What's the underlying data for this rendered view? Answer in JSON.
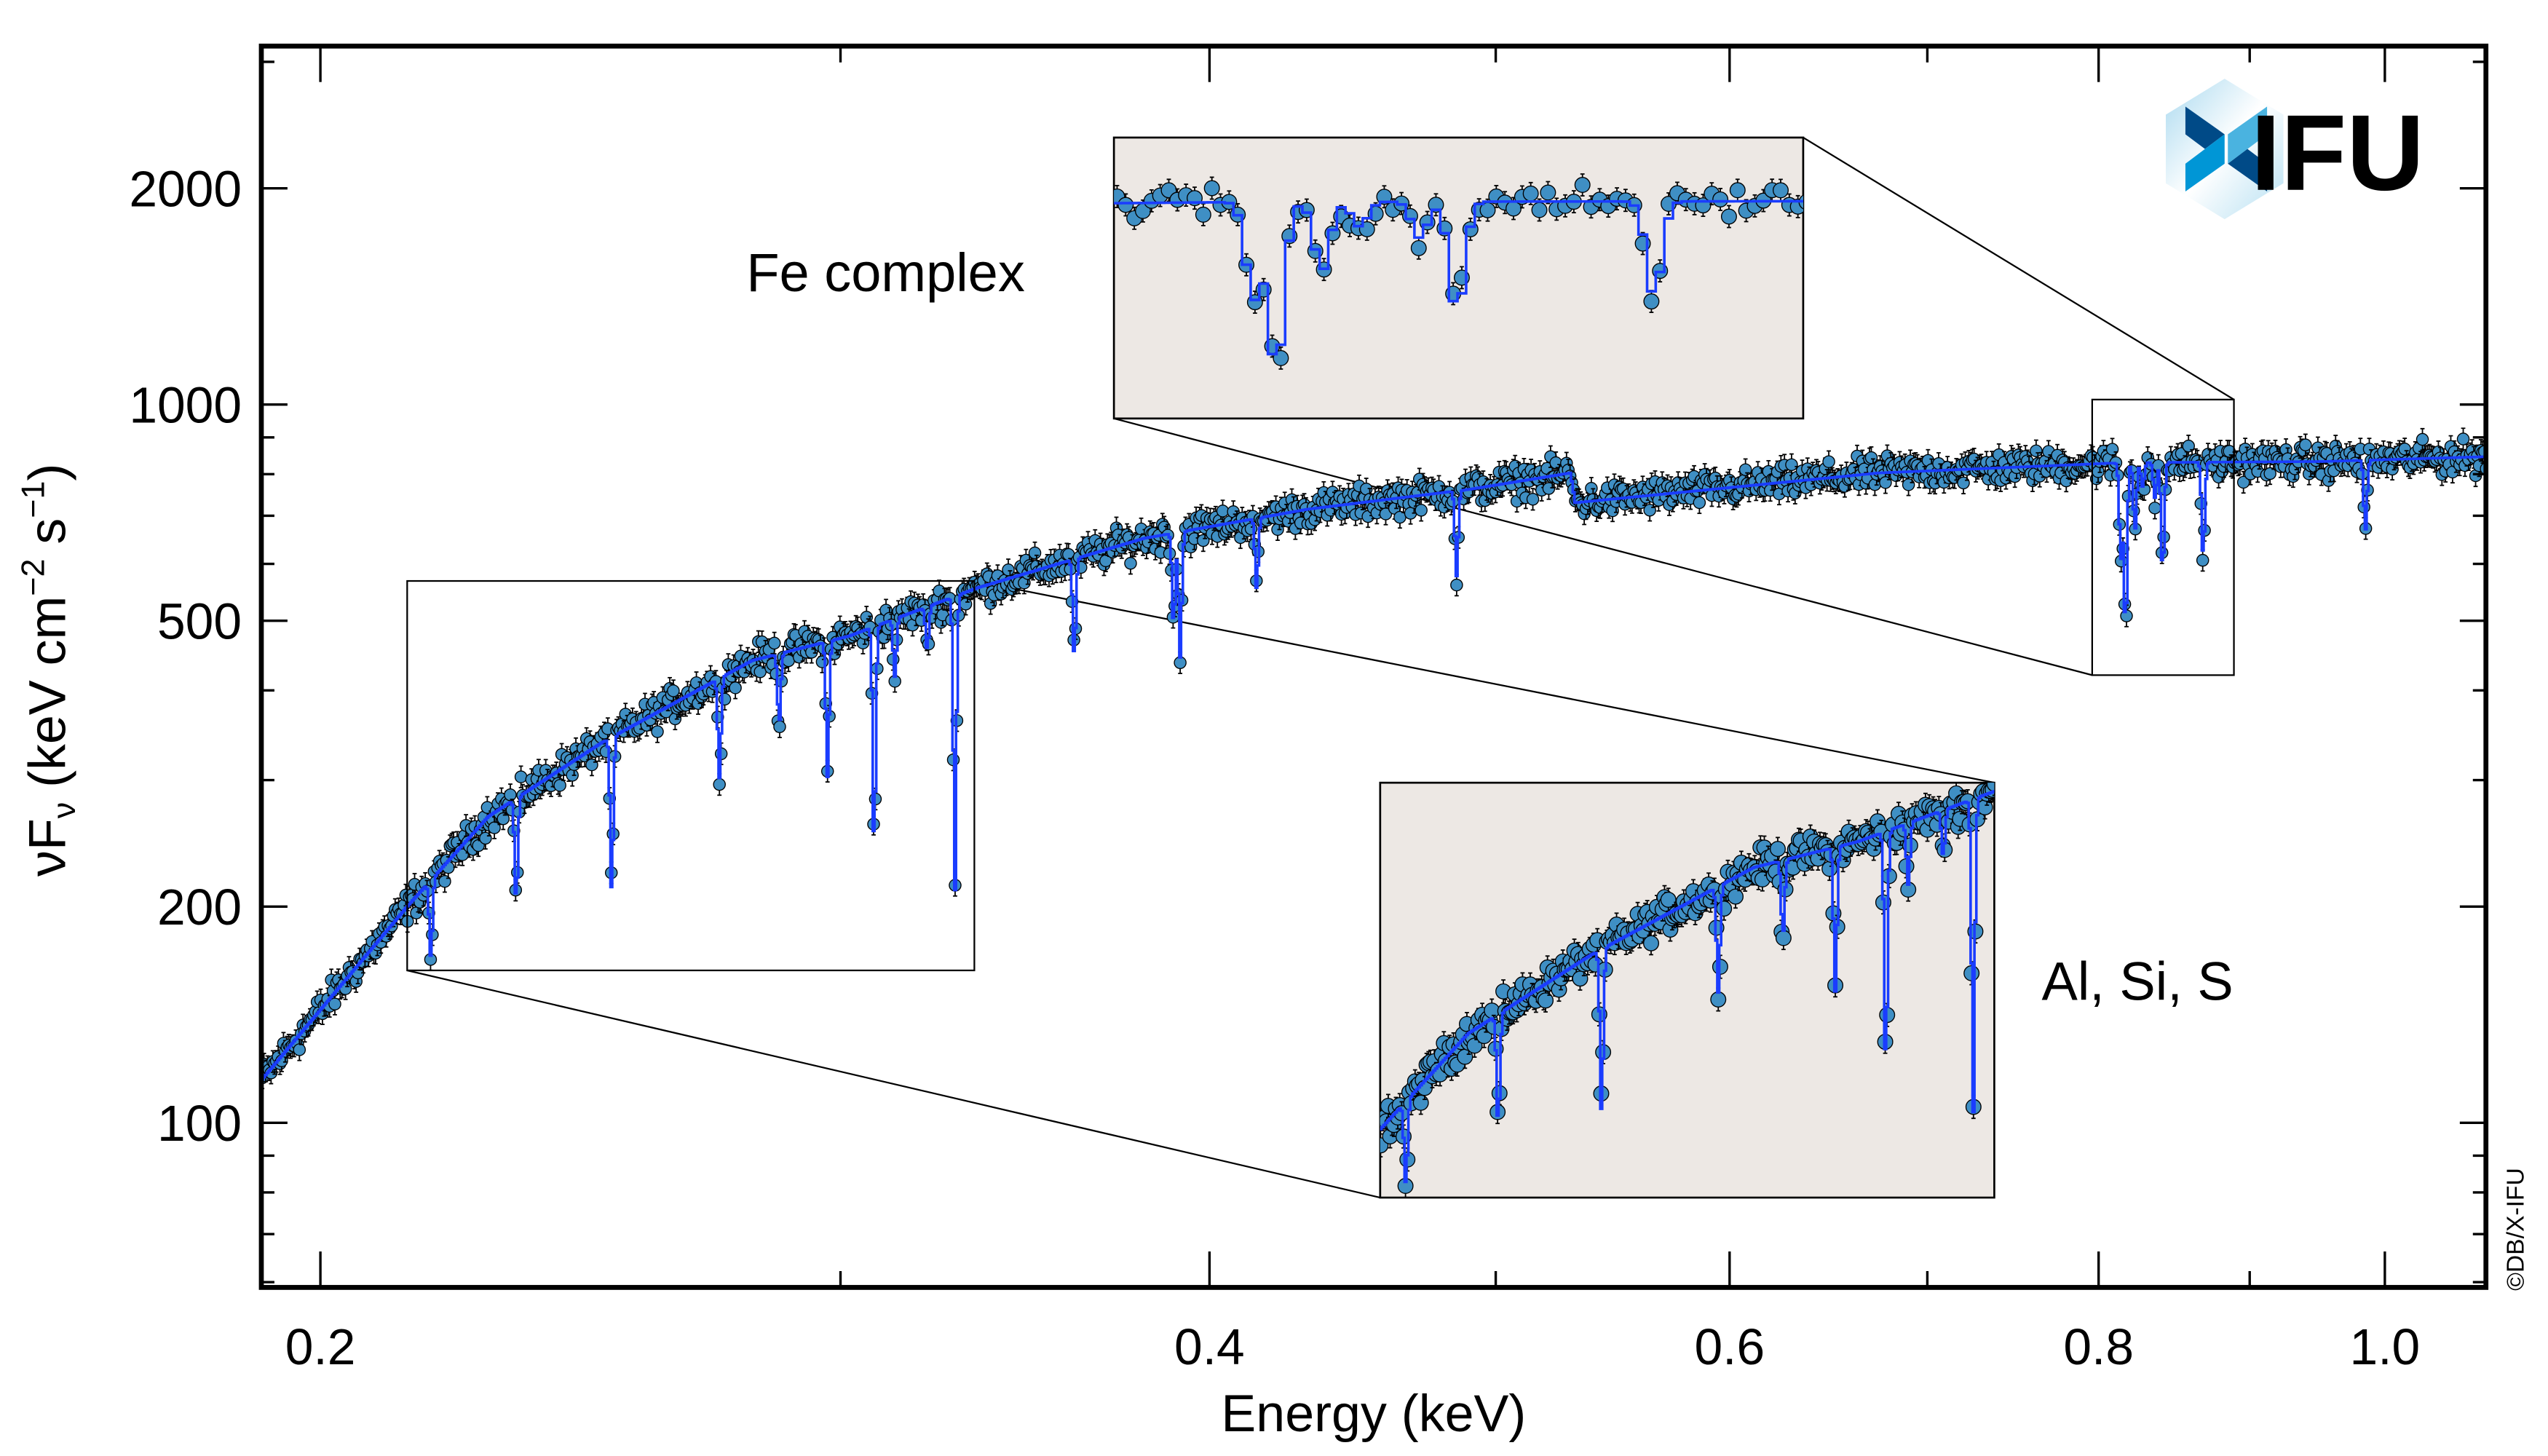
{
  "chart_data": {
    "type": "scatter",
    "xlabel": "Energy (keV)",
    "ylabel": {
      "nu": "ν",
      "F": "F",
      "sub": "ν",
      "open": " (keV cm",
      "sup1": "−2",
      "mid": " s",
      "sup2": "−1",
      "close": ")"
    },
    "xscale": "log",
    "yscale": "log",
    "xlim": [
      0.191,
      1.082
    ],
    "ylim": [
      59,
      3155
    ],
    "grid": false,
    "xticks": {
      "major": [
        0.2,
        0.4,
        0.6,
        0.8,
        1.0
      ],
      "labels": [
        "0.2",
        "0.4",
        "0.6",
        "0.8",
        "1.0"
      ],
      "minor": [
        0.3,
        0.5,
        0.7,
        0.9
      ]
    },
    "yticks": {
      "major": [
        100,
        200,
        500,
        1000,
        2000
      ],
      "labels": [
        "100",
        "200",
        "500",
        "1000",
        "2000"
      ],
      "minor": [
        60,
        70,
        80,
        90,
        300,
        400,
        600,
        700,
        800,
        900,
        3000
      ]
    },
    "continuum": {
      "x": [
        0.191,
        0.214,
        0.228,
        0.249,
        0.28,
        0.302,
        0.334,
        0.38,
        0.432,
        0.49,
        0.53,
        0.532,
        0.592,
        0.674,
        0.816,
        0.953,
        1.082
      ],
      "y": [
        114.6,
        200,
        267,
        338,
        440,
        476,
        556,
        651,
        715,
        762,
        803,
        730,
        762,
        803,
        830,
        833,
        846
      ]
    },
    "absorption_lines": [
      {
        "energy": 0.218,
        "min_flux": 170
      },
      {
        "energy": 0.233,
        "min_flux": 203
      },
      {
        "energy": 0.251,
        "min_flux": 209
      },
      {
        "energy": 0.273,
        "min_flux": 302
      },
      {
        "energy": 0.286,
        "min_flux": 360
      },
      {
        "energy": 0.297,
        "min_flux": 303
      },
      {
        "energy": 0.308,
        "min_flux": 237
      },
      {
        "energy": 0.313,
        "min_flux": 418
      },
      {
        "energy": 0.321,
        "min_flux": 456
      },
      {
        "energy": 0.328,
        "min_flux": 209
      },
      {
        "energy": 0.36,
        "min_flux": 447
      },
      {
        "energy": 0.389,
        "min_flux": 493
      },
      {
        "energy": 0.391,
        "min_flux": 444
      },
      {
        "energy": 0.415,
        "min_flux": 553
      },
      {
        "energy": 0.485,
        "min_flux": 577
      },
      {
        "energy": 0.814,
        "min_flux": 614
      },
      {
        "energy": 0.817,
        "min_flux": 481
      },
      {
        "energy": 0.823,
        "min_flux": 668
      },
      {
        "energy": 0.828,
        "min_flux": 768
      },
      {
        "energy": 0.836,
        "min_flux": 741
      },
      {
        "energy": 0.841,
        "min_flux": 582
      },
      {
        "energy": 0.868,
        "min_flux": 615
      },
      {
        "energy": 0.985,
        "min_flux": 668
      }
    ],
    "insets": [
      {
        "label": "Fe complex",
        "xlim": [
          0.796,
          0.889
        ],
        "ylim": [
          420,
          1016
        ]
      },
      {
        "label": "Al, Si, S",
        "xlim": [
          0.214,
          0.333
        ],
        "ylim": [
          163,
          568
        ]
      }
    ],
    "colors": {
      "points": "#3f8fc4",
      "model": "#1a3cff",
      "inset_background": "#ede8e4",
      "axes": "#000000"
    }
  },
  "logo": {
    "text": "IFU",
    "color": "#004a87",
    "accent": "#0096d6"
  },
  "copyright": "©DB/X-IFU"
}
